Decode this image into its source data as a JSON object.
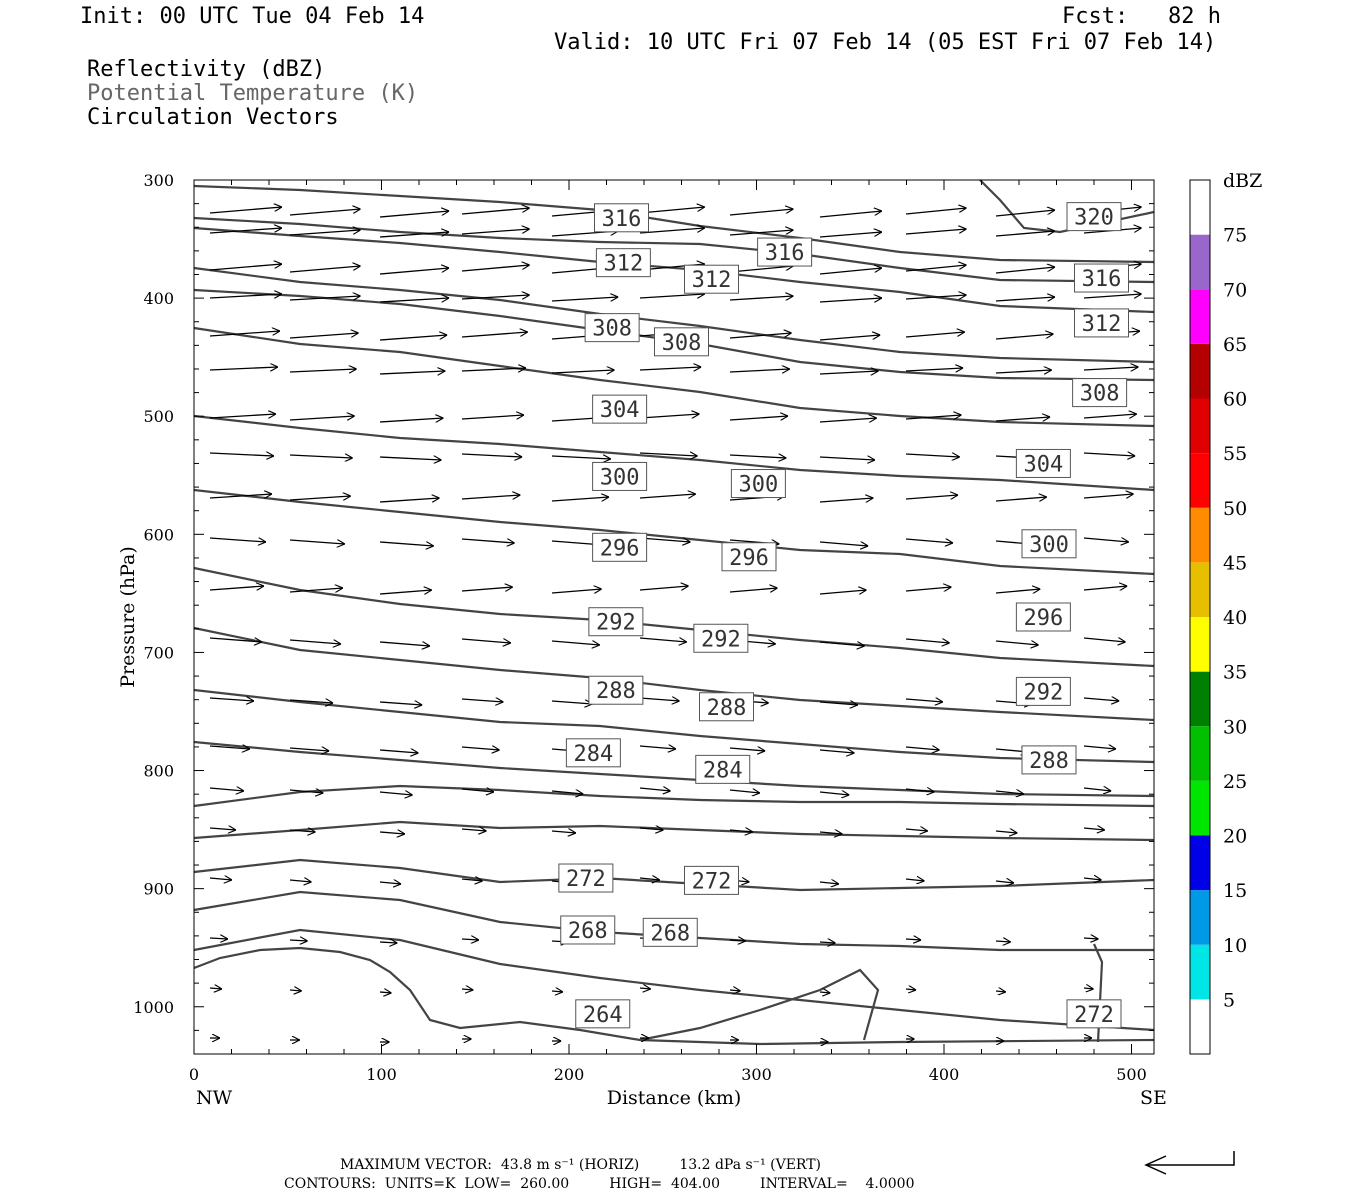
{
  "header": {
    "init": "Init: 00 UTC Tue 04 Feb 14",
    "fcst": "Fcst:   82 h",
    "valid": "Valid: 10 UTC Fri 07 Feb 14 (05 EST Fri 07 Feb 14)",
    "fields": [
      "Reflectivity (dBZ)",
      "Potential Temperature (K)",
      "Circulation Vectors"
    ],
    "field_colors": [
      "#000000",
      "#666666",
      "#000000"
    ]
  },
  "chart_data": {
    "type": "line",
    "subtype": "cross-section contour plot",
    "xlabel": "Distance (km)",
    "ylabel": "Pressure (hPa)",
    "xlim": [
      0,
      512
    ],
    "ylim": [
      1040,
      300
    ],
    "y_scale": "linear (inverted)",
    "x_ticks": [
      "0",
      "100",
      "200",
      "300",
      "400",
      "500"
    ],
    "y_ticks": [
      "300",
      "400",
      "500",
      "600",
      "700",
      "800",
      "900",
      "1000"
    ],
    "endpoint_labels": {
      "left": "NW",
      "right": "SE"
    },
    "contour_labels": [
      {
        "value": "316",
        "x": 228,
        "p": 332
      },
      {
        "value": "320",
        "x": 480,
        "p": 331
      },
      {
        "value": "316",
        "x": 315,
        "p": 361
      },
      {
        "value": "316",
        "x": 484,
        "p": 383
      },
      {
        "value": "312",
        "x": 229,
        "p": 370
      },
      {
        "value": "312",
        "x": 276,
        "p": 384
      },
      {
        "value": "312",
        "x": 484,
        "p": 421
      },
      {
        "value": "308",
        "x": 223,
        "p": 425
      },
      {
        "value": "308",
        "x": 260,
        "p": 437
      },
      {
        "value": "308",
        "x": 483,
        "p": 480
      },
      {
        "value": "304",
        "x": 227,
        "p": 494
      },
      {
        "value": "304",
        "x": 453,
        "p": 540
      },
      {
        "value": "300",
        "x": 227,
        "p": 551
      },
      {
        "value": "300",
        "x": 301,
        "p": 557
      },
      {
        "value": "300",
        "x": 456,
        "p": 608
      },
      {
        "value": "296",
        "x": 227,
        "p": 611
      },
      {
        "value": "296",
        "x": 296,
        "p": 619
      },
      {
        "value": "296",
        "x": 453,
        "p": 670
      },
      {
        "value": "292",
        "x": 225,
        "p": 674
      },
      {
        "value": "292",
        "x": 281,
        "p": 688
      },
      {
        "value": "292",
        "x": 453,
        "p": 733
      },
      {
        "value": "288",
        "x": 225,
        "p": 732
      },
      {
        "value": "288",
        "x": 284,
        "p": 746
      },
      {
        "value": "288",
        "x": 456,
        "p": 791
      },
      {
        "value": "284",
        "x": 213,
        "p": 785
      },
      {
        "value": "284",
        "x": 282,
        "p": 799
      },
      {
        "value": "272",
        "x": 209,
        "p": 891
      },
      {
        "value": "272",
        "x": 276,
        "p": 893
      },
      {
        "value": "268",
        "x": 210,
        "p": 935
      },
      {
        "value": "268",
        "x": 254,
        "p": 937
      },
      {
        "value": "264",
        "x": 218,
        "p": 1006
      },
      {
        "value": "272",
        "x": 480,
        "p": 1006
      }
    ],
    "colorbar": {
      "unit": "dBZ",
      "levels": [
        "5",
        "10",
        "15",
        "20",
        "25",
        "30",
        "35",
        "40",
        "45",
        "50",
        "55",
        "60",
        "65",
        "70",
        "75"
      ],
      "colors": [
        "#ffffff",
        "#00e6e6",
        "#0099e6",
        "#0000e6",
        "#00e600",
        "#00c000",
        "#008000",
        "#ffff00",
        "#e6c000",
        "#ff8c00",
        "#ff0000",
        "#e00000",
        "#b40000",
        "#ff00ff",
        "#9966cc",
        "#ffffff"
      ]
    },
    "colors": {
      "contour": "#444444",
      "vector": "#000000",
      "frame": "#000000"
    },
    "grid": false,
    "legend": "none"
  },
  "footer": {
    "max_vector": "MAXIMUM VECTOR:  43.8 m s⁻¹ (HORIZ)         13.2 dPa s⁻¹ (VERT)",
    "contours": "CONTOURS:  UNITS=K  LOW=  260.00         HIGH=  404.00         INTERVAL=    4.0000"
  }
}
